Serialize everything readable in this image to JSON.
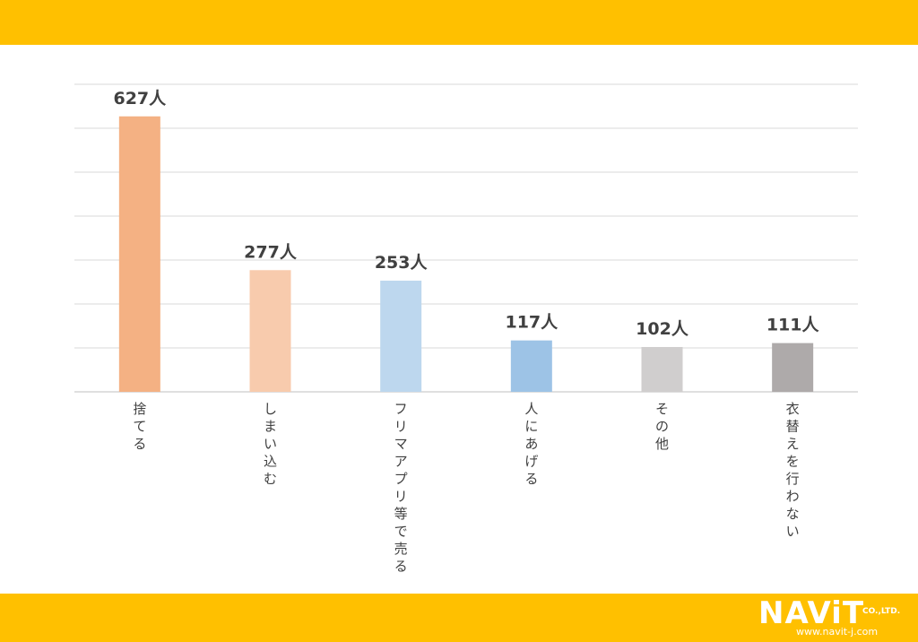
{
  "colors": {
    "band": "#FFC000",
    "grid": "#D9D9D9",
    "axis": "#BFBFBF",
    "label_text": "#404040",
    "bar_colors": [
      "#F4B183",
      "#F8CBAD",
      "#BDD7EE",
      "#9DC3E6",
      "#D0CECE",
      "#AEAAAA"
    ]
  },
  "logo": {
    "name": "NAViT",
    "company_suffix": "CO.,LTD.",
    "url": "www.navit-j.com"
  },
  "chart_data": {
    "type": "bar",
    "categories": [
      "捨てる",
      "しまい込む",
      "フリマアプリ等で売る",
      "人にあげる",
      "その他",
      "衣替えを行わない"
    ],
    "values": [
      627,
      277,
      253,
      117,
      102,
      111
    ],
    "data_labels": [
      "627人",
      "277人",
      "253人",
      "117人",
      "102人",
      "111人"
    ],
    "title": "",
    "xlabel": "",
    "ylabel": "",
    "ylim": [
      0,
      700
    ],
    "gridlines": [
      0,
      100,
      200,
      300,
      400,
      500,
      600,
      700
    ],
    "grid": true,
    "legend": "none"
  }
}
